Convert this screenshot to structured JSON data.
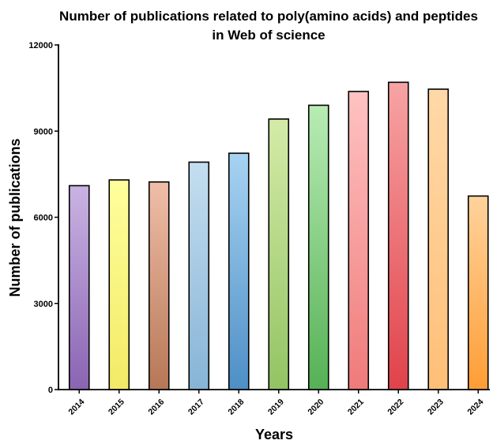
{
  "chart_data": {
    "type": "bar",
    "title_lines": [
      "Number of publications related to poly(amino acids) and peptides",
      "in Web of science"
    ],
    "xlabel": "Years",
    "ylabel": "Number of publications",
    "ylim": [
      0,
      12000
    ],
    "yticks": [
      0,
      3000,
      6000,
      9000,
      12000
    ],
    "ytick_labels": [
      "0",
      "3000",
      "6000",
      "9000",
      "12000"
    ],
    "grid": false,
    "categories": [
      "2014",
      "2015",
      "2016",
      "2017",
      "2018",
      "2019",
      "2020",
      "2021",
      "2022",
      "2023",
      "2024"
    ],
    "values": [
      7100,
      7300,
      7230,
      7920,
      8230,
      9420,
      9900,
      10380,
      10700,
      10460,
      6740
    ],
    "colors": [
      [
        "#c9b3e3",
        "#8a64b2"
      ],
      [
        "#ffff9c",
        "#f2ea66"
      ],
      [
        "#f0bea8",
        "#b67756"
      ],
      [
        "#c4def0",
        "#86b4d6"
      ],
      [
        "#a8d3f2",
        "#4d8fc6"
      ],
      [
        "#d4eba8",
        "#92c463"
      ],
      [
        "#b8ecb4",
        "#55b155"
      ],
      [
        "#ffc2c2",
        "#f07a7a"
      ],
      [
        "#f7a4a4",
        "#e0424a"
      ],
      [
        "#ffd9a8",
        "#ffbf77"
      ],
      [
        "#ffd39c",
        "#ff9d36"
      ]
    ]
  }
}
